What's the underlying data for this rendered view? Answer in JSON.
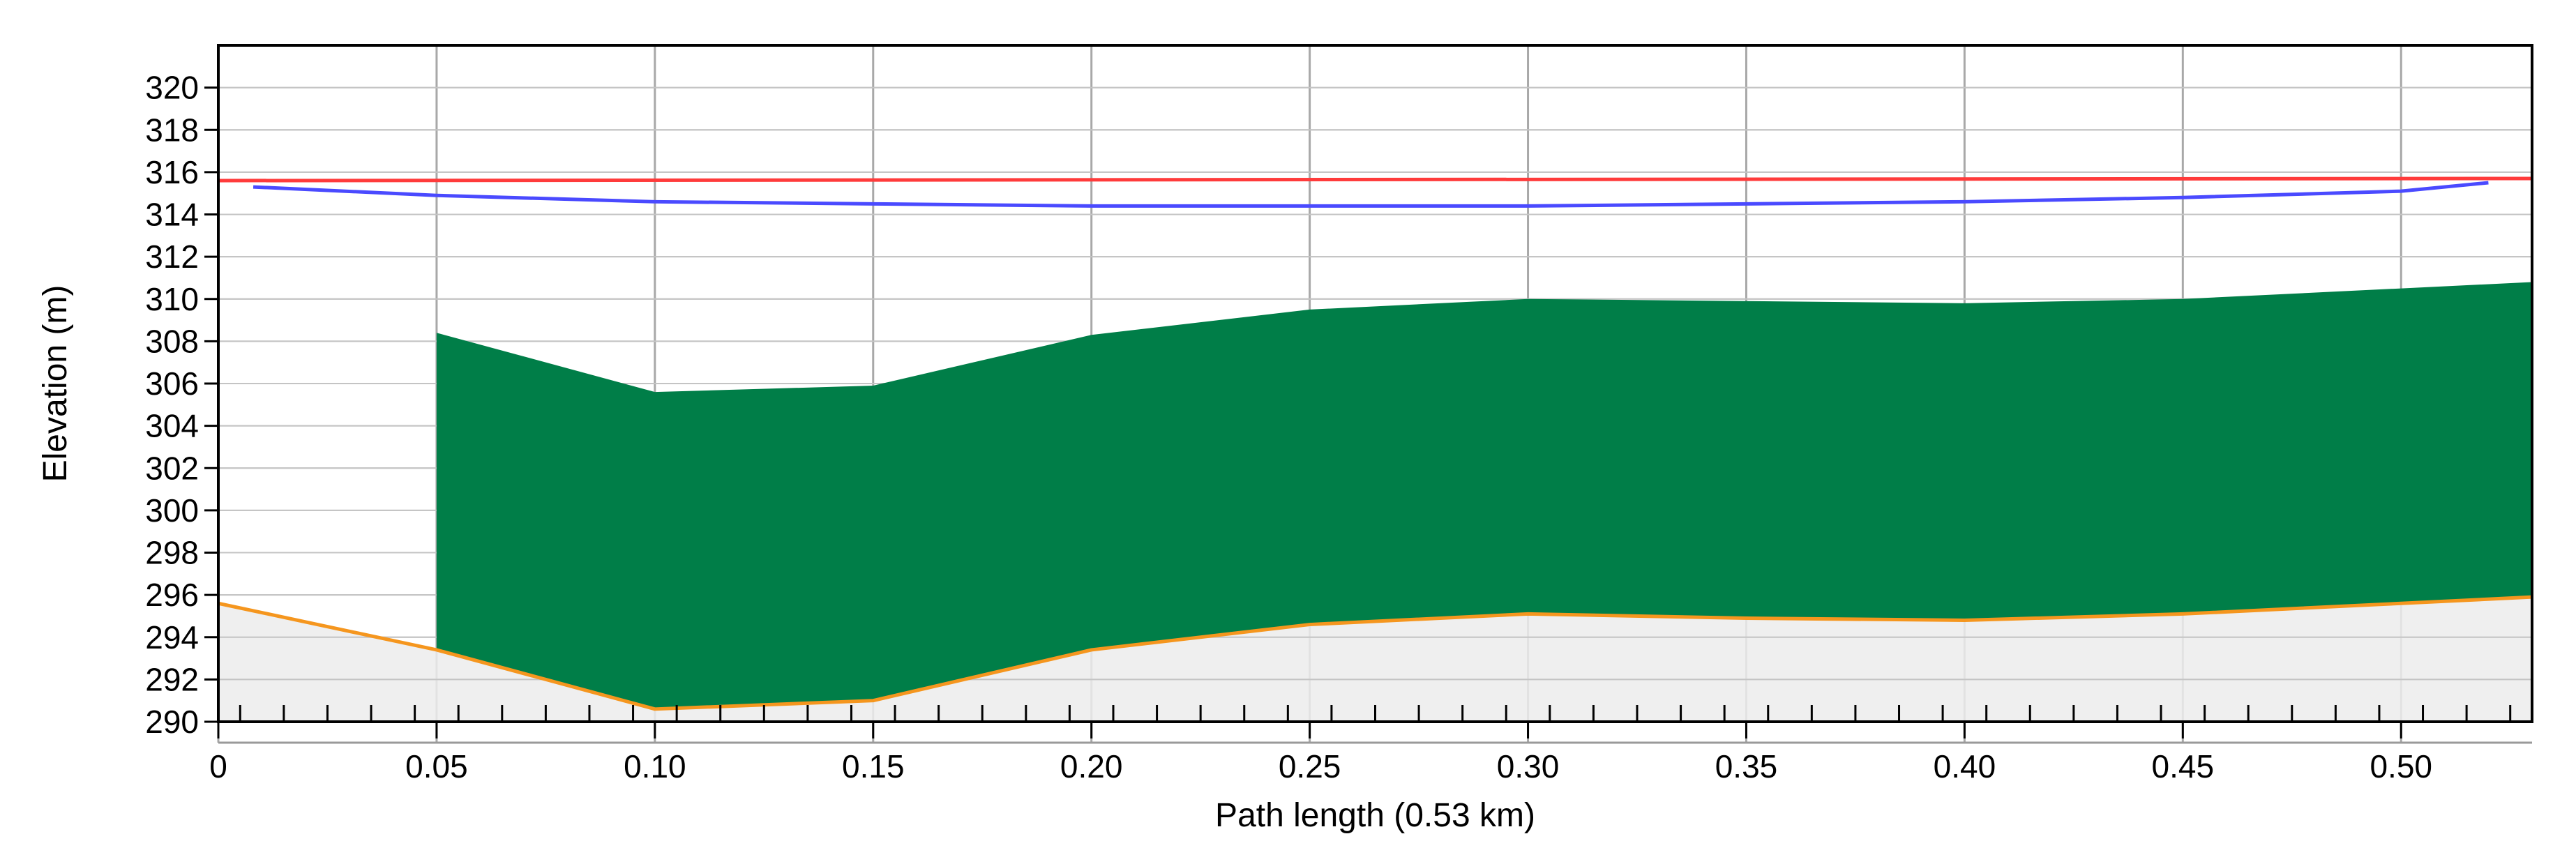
{
  "chart_data": {
    "type": "area",
    "xlabel": "Path length (0.53 km)",
    "ylabel": "Elevation (m)",
    "xlim": [
      0,
      0.53
    ],
    "ylim": [
      290,
      322
    ],
    "grid": true,
    "x_ticks": [
      "0",
      "0.05",
      "0.10",
      "0.15",
      "0.20",
      "0.25",
      "0.30",
      "0.35",
      "0.40",
      "0.45",
      "0.50"
    ],
    "y_ticks": [
      "290",
      "292",
      "294",
      "296",
      "298",
      "300",
      "302",
      "304",
      "306",
      "308",
      "310",
      "312",
      "314",
      "316",
      "318",
      "320"
    ],
    "series": [
      {
        "color": "#f5961e",
        "x": [
          0,
          0.05,
          0.1,
          0.15,
          0.2,
          0.25,
          0.3,
          0.35,
          0.4,
          0.45,
          0.5,
          0.53
        ],
        "values": [
          295.6,
          293.4,
          290.6,
          291.0,
          293.4,
          294.6,
          295.1,
          294.9,
          294.8,
          295.1,
          295.6,
          295.9
        ]
      },
      {
        "color": "#007e48",
        "x": [
          0.05,
          0.1,
          0.15,
          0.2,
          0.25,
          0.3,
          0.35,
          0.4,
          0.45,
          0.5,
          0.53
        ],
        "values": [
          308.4,
          305.6,
          305.9,
          308.3,
          309.5,
          310.0,
          309.9,
          309.8,
          310.0,
          310.5,
          310.8
        ]
      },
      {
        "color": "#ff3b3b",
        "x": [
          0,
          0.53
        ],
        "values": [
          315.6,
          315.7
        ]
      },
      {
        "color": "#4a4aff",
        "x": [
          0.008,
          0.05,
          0.1,
          0.15,
          0.2,
          0.25,
          0.3,
          0.35,
          0.4,
          0.45,
          0.5,
          0.52
        ],
        "values": [
          315.3,
          314.9,
          314.6,
          314.5,
          314.4,
          314.4,
          314.4,
          314.5,
          314.6,
          314.8,
          315.1,
          315.5
        ]
      }
    ]
  }
}
